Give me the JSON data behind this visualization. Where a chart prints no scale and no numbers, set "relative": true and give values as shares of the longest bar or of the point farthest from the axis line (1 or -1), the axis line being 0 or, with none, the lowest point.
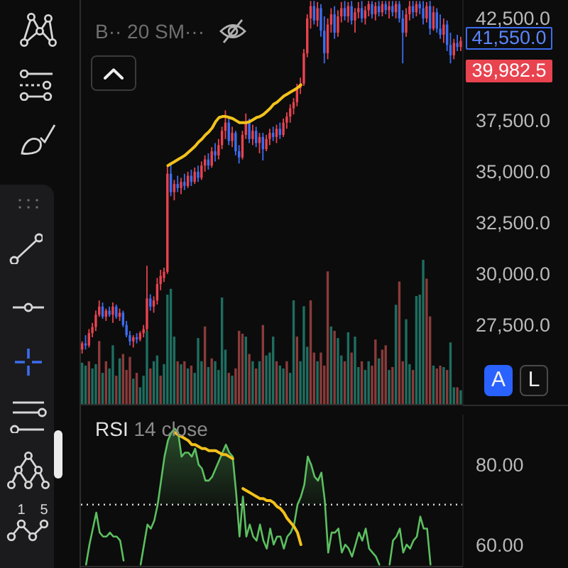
{
  "chart_data": [
    {
      "type": "candlestick",
      "categories": [
        null,
        null,
        null,
        null,
        null,
        null,
        null,
        null,
        null,
        null,
        null,
        null,
        null,
        null,
        null,
        null,
        null,
        null,
        null,
        null,
        null,
        null,
        null,
        null,
        null,
        null,
        null,
        null,
        null,
        null,
        null,
        null,
        null,
        null,
        null,
        null,
        null,
        null,
        null,
        null,
        null,
        null,
        null,
        null,
        null,
        null,
        null,
        null,
        null,
        null,
        null,
        null,
        null,
        null,
        null,
        null,
        null,
        null,
        null,
        null,
        null,
        null,
        null,
        null,
        null,
        null,
        null,
        null,
        null,
        null,
        null,
        null,
        null,
        null,
        null,
        null,
        null,
        null,
        null,
        null,
        null,
        null,
        null,
        null,
        null,
        null,
        null,
        null,
        null,
        null,
        null,
        null,
        null,
        null,
        null,
        null,
        null,
        null,
        null,
        null,
        null,
        null,
        null,
        null,
        null,
        null,
        null,
        null,
        null,
        null,
        null,
        null
      ],
      "ohlc": [
        [
          26300,
          26700,
          26100,
          26600
        ],
        [
          26600,
          27000,
          26300,
          26500
        ],
        [
          26500,
          27300,
          26400,
          27100
        ],
        [
          27100,
          27600,
          26900,
          27400
        ],
        [
          27400,
          28200,
          27200,
          28000
        ],
        [
          28000,
          28700,
          27900,
          28400
        ],
        [
          28400,
          28600,
          27800,
          27900
        ],
        [
          27900,
          28300,
          27700,
          28200
        ],
        [
          28200,
          28400,
          27900,
          28000
        ],
        [
          28000,
          28600,
          27600,
          28400
        ],
        [
          28400,
          28500,
          27800,
          27900
        ],
        [
          27900,
          28300,
          27700,
          28100
        ],
        [
          28100,
          28200,
          27400,
          27500
        ],
        [
          27500,
          27700,
          26900,
          27000
        ],
        [
          27000,
          27200,
          26500,
          26700
        ],
        [
          26700,
          27000,
          26400,
          26900
        ],
        [
          26900,
          27100,
          26600,
          26800
        ],
        [
          26800,
          27200,
          26700,
          27100
        ],
        [
          27100,
          27500,
          26900,
          27300
        ],
        [
          27300,
          30400,
          27200,
          28800
        ],
        [
          28800,
          29000,
          28200,
          28400
        ],
        [
          28400,
          28900,
          28100,
          28700
        ],
        [
          28700,
          29800,
          28500,
          29500
        ],
        [
          29500,
          30200,
          29200,
          29900
        ],
        [
          29800,
          30300,
          29600,
          30100
        ],
        [
          30100,
          35300,
          30000,
          34900
        ],
        [
          34900,
          35400,
          33800,
          34000
        ],
        [
          34000,
          34600,
          33600,
          34400
        ],
        [
          34400,
          34800,
          34000,
          34200
        ],
        [
          34200,
          34700,
          33900,
          34500
        ],
        [
          34500,
          34900,
          34100,
          34300
        ],
        [
          34300,
          35000,
          34200,
          34800
        ],
        [
          34800,
          35100,
          34300,
          34500
        ],
        [
          34500,
          35200,
          34400,
          35000
        ],
        [
          35000,
          35300,
          34500,
          34700
        ],
        [
          34700,
          35500,
          34600,
          35300
        ],
        [
          35300,
          35800,
          35000,
          35600
        ],
        [
          35600,
          35900,
          35100,
          35300
        ],
        [
          35300,
          36200,
          35200,
          36000
        ],
        [
          36000,
          36400,
          35500,
          35800
        ],
        [
          35800,
          36600,
          35600,
          36300
        ],
        [
          36300,
          37200,
          36100,
          37000
        ],
        [
          37000,
          38000,
          36600,
          37400
        ],
        [
          37400,
          37600,
          36300,
          36500
        ],
        [
          36500,
          37200,
          36200,
          36900
        ],
        [
          36900,
          37000,
          35800,
          36000
        ],
        [
          36000,
          36300,
          35400,
          35700
        ],
        [
          35700,
          37000,
          35600,
          36800
        ],
        [
          36800,
          37850,
          36600,
          37400
        ],
        [
          37400,
          37600,
          36400,
          36600
        ],
        [
          36600,
          37300,
          36300,
          37000
        ],
        [
          37000,
          37200,
          36200,
          36400
        ],
        [
          36400,
          36900,
          35900,
          36700
        ],
        [
          36700,
          36900,
          35550,
          36100
        ],
        [
          36100,
          36800,
          36000,
          36600
        ],
        [
          36600,
          37100,
          36300,
          36900
        ],
        [
          36900,
          37200,
          36500,
          36700
        ],
        [
          36700,
          37300,
          36400,
          37100
        ],
        [
          37100,
          37400,
          36600,
          36800
        ],
        [
          36800,
          37600,
          36700,
          37400
        ],
        [
          37400,
          37900,
          37100,
          37700
        ],
        [
          37700,
          38300,
          37400,
          38100
        ],
        [
          38100,
          38600,
          37800,
          38400
        ],
        [
          38400,
          39300,
          38200,
          39100
        ],
        [
          39100,
          39600,
          38800,
          39300
        ],
        [
          39300,
          41000,
          39200,
          40800
        ],
        [
          40800,
          42700,
          40600,
          42500
        ],
        [
          42500,
          43350,
          42000,
          43100
        ],
        [
          43100,
          43350,
          42200,
          42400
        ],
        [
          42400,
          43300,
          42100,
          43000
        ],
        [
          43000,
          43200,
          41600,
          41900
        ],
        [
          41900,
          42600,
          40300,
          40800
        ],
        [
          40800,
          42500,
          40500,
          42200
        ],
        [
          42200,
          43000,
          41800,
          42700
        ],
        [
          42700,
          43100,
          41500,
          41800
        ],
        [
          41800,
          42900,
          41600,
          42600
        ],
        [
          42600,
          43300,
          42300,
          43000
        ],
        [
          43000,
          43350,
          42400,
          42600
        ],
        [
          42600,
          43300,
          42300,
          43100
        ],
        [
          43100,
          43350,
          42200,
          42400
        ],
        [
          42400,
          43000,
          41800,
          42800
        ],
        [
          42800,
          43300,
          42500,
          43000
        ],
        [
          43000,
          43350,
          42300,
          42500
        ],
        [
          42500,
          43100,
          42200,
          42900
        ],
        [
          42900,
          43350,
          42600,
          43200
        ],
        [
          43200,
          43350,
          42500,
          42700
        ],
        [
          42700,
          43300,
          42400,
          43100
        ],
        [
          43100,
          43350,
          42600,
          42800
        ],
        [
          42800,
          43350,
          42600,
          43200
        ],
        [
          43200,
          43350,
          42700,
          42900
        ],
        [
          42900,
          43350,
          42500,
          43100
        ],
        [
          43100,
          43350,
          42600,
          42800
        ],
        [
          42800,
          43350,
          42500,
          43200
        ],
        [
          43200,
          43350,
          42300,
          42500
        ],
        [
          42500,
          42900,
          40300,
          41800
        ],
        [
          41800,
          43000,
          41600,
          42700
        ],
        [
          42700,
          43350,
          42400,
          43100
        ],
        [
          43100,
          43350,
          42500,
          42800
        ],
        [
          42800,
          43350,
          42600,
          43200
        ],
        [
          43200,
          43350,
          42700,
          43000
        ],
        [
          43000,
          43350,
          42200,
          42500
        ],
        [
          42500,
          43300,
          42300,
          43100
        ],
        [
          43100,
          43350,
          41700,
          42000
        ],
        [
          42000,
          43100,
          41900,
          42800
        ],
        [
          42800,
          43000,
          41800,
          42000
        ],
        [
          42000,
          42700,
          41500,
          41700
        ],
        [
          41700,
          42500,
          41300,
          42200
        ],
        [
          42200,
          42400,
          40900,
          41200
        ],
        [
          41200,
          41800,
          40300,
          40700
        ],
        [
          40700,
          41500,
          40500,
          41300
        ],
        [
          41300,
          41700,
          40900,
          41100
        ],
        [
          41100,
          41600,
          40900,
          41400
        ]
      ],
      "colors": [
        "#e8434f",
        "#3d6df0",
        "#e8434f",
        "#e8434f",
        "#e8434f",
        "#e8434f",
        "#3d6df0",
        "#e8434f",
        "#3d6df0",
        "#e8434f",
        "#3d6df0",
        "#e8434f",
        "#3d6df0",
        "#3d6df0",
        "#3d6df0",
        "#e8434f",
        "#3d6df0",
        "#e8434f",
        "#e8434f",
        "#e8434f",
        "#3d6df0",
        "#e8434f",
        "#e8434f",
        "#e8434f",
        "#e8434f",
        "#e8434f",
        "#3d6df0",
        "#e8434f",
        "#3d6df0",
        "#e8434f",
        "#3d6df0",
        "#e8434f",
        "#3d6df0",
        "#e8434f",
        "#3d6df0",
        "#e8434f",
        "#e8434f",
        "#3d6df0",
        "#e8434f",
        "#3d6df0",
        "#e8434f",
        "#e8434f",
        "#e8434f",
        "#3d6df0",
        "#e8434f",
        "#3d6df0",
        "#3d6df0",
        "#e8434f",
        "#e8434f",
        "#3d6df0",
        "#e8434f",
        "#3d6df0",
        "#e8434f",
        "#3d6df0",
        "#e8434f",
        "#e8434f",
        "#3d6df0",
        "#e8434f",
        "#3d6df0",
        "#e8434f",
        "#e8434f",
        "#e8434f",
        "#e8434f",
        "#e8434f",
        "#e8434f",
        "#e8434f",
        "#e8434f",
        "#e8434f",
        "#3d6df0",
        "#e8434f",
        "#3d6df0",
        "#3d6df0",
        "#e8434f",
        "#e8434f",
        "#3d6df0",
        "#e8434f",
        "#e8434f",
        "#3d6df0",
        "#e8434f",
        "#3d6df0",
        "#e8434f",
        "#e8434f",
        "#3d6df0",
        "#e8434f",
        "#e8434f",
        "#3d6df0",
        "#e8434f",
        "#3d6df0",
        "#e8434f",
        "#3d6df0",
        "#e8434f",
        "#3d6df0",
        "#e8434f",
        "#3d6df0",
        "#3d6df0",
        "#e8434f",
        "#e8434f",
        "#3d6df0",
        "#e8434f",
        "#3d6df0",
        "#3d6df0",
        "#e8434f",
        "#3d6df0",
        "#e8434f",
        "#3d6df0",
        "#3d6df0",
        "#e8434f",
        "#3d6df0",
        "#3d6df0",
        "#e8434f",
        "#3d6df0",
        "#e8434f"
      ],
      "series": [
        {
          "type": "line",
          "color": "#f2c21b",
          "values": [
            null,
            null,
            null,
            null,
            null,
            null,
            null,
            null,
            null,
            null,
            null,
            null,
            null,
            null,
            null,
            null,
            null,
            null,
            null,
            null,
            null,
            null,
            null,
            null,
            null,
            35300,
            35400,
            35500,
            35600,
            35700,
            35800,
            35950,
            36100,
            36250,
            36450,
            36600,
            36800,
            36950,
            37150,
            37450,
            37650,
            37700,
            37700,
            37650,
            37600,
            37500,
            37400,
            37400,
            37400,
            37450,
            37550,
            37650,
            37700,
            37800,
            37950,
            38100,
            38300,
            38400,
            38550,
            38700,
            38800,
            38900,
            39000,
            39100,
            39250,
            null,
            null,
            null,
            null,
            null,
            null,
            null,
            null,
            null,
            null,
            null,
            null,
            null,
            null,
            null,
            null,
            null,
            null,
            null,
            null,
            null,
            null,
            null,
            null,
            null,
            null,
            null,
            null,
            null,
            null,
            null,
            null,
            null,
            null,
            null,
            null,
            null,
            null,
            null,
            null,
            null,
            null,
            null,
            null,
            null,
            null,
            null
          ]
        }
      ],
      "ylim": [
        23600,
        43400
      ],
      "yticks": [
        {
          "value": 27500,
          "label": "27,500.0"
        },
        {
          "value": 30000,
          "label": "30,000.0"
        },
        {
          "value": 32500,
          "label": "32,500.0"
        },
        {
          "value": 35000,
          "label": "35,000.0"
        },
        {
          "value": 37500,
          "label": "37,500.0"
        },
        {
          "value": 42500,
          "label": "42,500.0"
        }
      ],
      "annotations": [
        "B·· 20 SM···",
        "41,550.0",
        "39,982.5",
        "A",
        "L"
      ]
    },
    {
      "type": "bar",
      "relative": true,
      "categories": [
        null,
        null,
        null,
        null,
        null,
        null,
        null,
        null,
        null,
        null,
        null,
        null,
        null,
        null,
        null,
        null,
        null,
        null,
        null,
        null,
        null,
        null,
        null,
        null,
        null,
        null,
        null,
        null,
        null,
        null,
        null,
        null,
        null,
        null,
        null,
        null,
        null,
        null,
        null,
        null,
        null,
        null,
        null,
        null,
        null,
        null,
        null,
        null,
        null,
        null,
        null,
        null,
        null,
        null,
        null,
        null,
        null,
        null,
        null,
        null,
        null,
        null,
        null,
        null,
        null,
        null,
        null,
        null,
        null,
        null,
        null,
        null,
        null,
        null,
        null,
        null,
        null,
        null,
        null,
        null,
        null,
        null,
        null,
        null,
        null,
        null,
        null,
        null,
        null,
        null,
        null,
        null,
        null,
        null,
        null,
        null,
        null,
        null,
        null,
        null,
        null,
        null,
        null,
        null,
        null,
        null,
        null,
        null,
        null,
        null,
        null,
        null
      ],
      "values": [
        0.29,
        0.27,
        0.3,
        0.25,
        0.28,
        0.44,
        0.22,
        0.3,
        0.25,
        0.41,
        0.2,
        0.32,
        0.35,
        0.24,
        0.33,
        0.18,
        0.22,
        0.12,
        0.2,
        0.51,
        0.25,
        0.3,
        0.34,
        0.2,
        0.28,
        0.76,
        0.8,
        0.47,
        0.3,
        0.28,
        0.3,
        0.25,
        0.27,
        0.22,
        0.46,
        0.3,
        0.54,
        0.26,
        0.32,
        0.3,
        0.24,
        0.74,
        0.38,
        0.22,
        0.2,
        0.25,
        0.51,
        0.49,
        0.47,
        0.35,
        0.3,
        0.25,
        0.3,
        0.55,
        0.34,
        0.36,
        0.47,
        0.3,
        0.27,
        0.25,
        0.3,
        0.22,
        0.72,
        0.47,
        0.3,
        0.68,
        0.4,
        0.72,
        0.36,
        0.3,
        0.36,
        0.27,
        0.92,
        0.54,
        0.51,
        0.46,
        0.34,
        0.3,
        0.5,
        0.36,
        0.47,
        0.26,
        0.3,
        0.24,
        0.3,
        0.27,
        0.45,
        0.32,
        0.38,
        0.41,
        0.24,
        0.26,
        0.69,
        0.85,
        0.3,
        0.59,
        0.28,
        0.24,
        0.75,
        0.76,
        1,
        0.87,
        0.61,
        0.27,
        0.25,
        0.27,
        0.26,
        0.24,
        0.43,
        0.12,
        0.12,
        0.1
      ],
      "colors": [
        "#1e6e60",
        "#1e6e60",
        "#8a3b3b",
        "#1e6e60",
        "#1e6e60",
        "#8a3b3b",
        "#1e6e60",
        "#8a3b3b",
        "#1e6e60",
        "#1e6e60",
        "#8a3b3b",
        "#1e6e60",
        "#8a3b3b",
        "#8a3b3b",
        "#8a3b3b",
        "#1e6e60",
        "#8a3b3b",
        "#1e6e60",
        "#1e6e60",
        "#1e6e60",
        "#8a3b3b",
        "#1e6e60",
        "#1e6e60",
        "#8a3b3b",
        "#1e6e60",
        "#1e6e60",
        "#1e6e60",
        "#1e6e60",
        "#8a3b3b",
        "#1e6e60",
        "#8a3b3b",
        "#1e6e60",
        "#8a3b3b",
        "#1e6e60",
        "#1e6e60",
        "#1e6e60",
        "#8a3b3b",
        "#1e6e60",
        "#8a3b3b",
        "#1e6e60",
        "#1e6e60",
        "#1e6e60",
        "#1e6e60",
        "#8a3b3b",
        "#1e6e60",
        "#8a3b3b",
        "#8a3b3b",
        "#8a3b3b",
        "#1e6e60",
        "#8a3b3b",
        "#1e6e60",
        "#8a3b3b",
        "#1e6e60",
        "#8a3b3b",
        "#1e6e60",
        "#1e6e60",
        "#1e6e60",
        "#8a3b3b",
        "#1e6e60",
        "#1e6e60",
        "#8a3b3b",
        "#1e6e60",
        "#1e6e60",
        "#8a3b3b",
        "#1e6e60",
        "#1e6e60",
        "#1e6e60",
        "#8a3b3b",
        "#8a3b3b",
        "#1e6e60",
        "#8a3b3b",
        "#8a3b3b",
        "#8a3b3b",
        "#1e6e60",
        "#8a3b3b",
        "#1e6e60",
        "#1e6e60",
        "#8a3b3b",
        "#1e6e60",
        "#8a3b3b",
        "#1e6e60",
        "#1e6e60",
        "#8a3b3b",
        "#1e6e60",
        "#1e6e60",
        "#8a3b3b",
        "#8a3b3b",
        "#1e6e60",
        "#8a3b3b",
        "#8a3b3b",
        "#1e6e60",
        "#8a3b3b",
        "#1e6e60",
        "#8a3b3b",
        "#8a3b3b",
        "#1e6e60",
        "#1e6e60",
        "#8a3b3b",
        "#1e6e60",
        "#1e6e60",
        "#1e6e60",
        "#8a3b3b",
        "#8a3b3b",
        "#1e6e60",
        "#8a3b3b",
        "#8a3b3b",
        "#1e6e60",
        "#8a3b3b",
        "#1e6e60",
        "#1e6e60",
        "#8a3b3b",
        "#1e6e60"
      ]
    },
    {
      "type": "line",
      "title": "RSI",
      "subtitle": "14 close",
      "categories": [
        null,
        null,
        null,
        null,
        null,
        null,
        null,
        null,
        null,
        null,
        null,
        null,
        null,
        null,
        null,
        null,
        null,
        null,
        null,
        null,
        null,
        null,
        null,
        null,
        null,
        null,
        null,
        null,
        null,
        null,
        null,
        null,
        null,
        null,
        null,
        null,
        null,
        null,
        null,
        null,
        null,
        null,
        null,
        null,
        null,
        null,
        null,
        null,
        null,
        null,
        null,
        null,
        null,
        null,
        null,
        null,
        null,
        null,
        null,
        null,
        null,
        null,
        null,
        null,
        null,
        null,
        null,
        null,
        null,
        null,
        null,
        null,
        null,
        null,
        null,
        null,
        null,
        null,
        null,
        null,
        null,
        null,
        null,
        null,
        null,
        null,
        null,
        null,
        null,
        null,
        null,
        null,
        null,
        null,
        null,
        null,
        null,
        null,
        null,
        null,
        null,
        null,
        null,
        null,
        null,
        null,
        null,
        null,
        null,
        null,
        null,
        null
      ],
      "series": [
        {
          "color": "#5cbf60",
          "values": [
            null,
            55,
            60,
            64,
            68,
            63,
            62,
            62,
            63,
            62,
            62,
            61,
            56,
            null,
            null,
            null,
            null,
            55,
            60,
            65,
            64,
            66,
            70,
            76,
            82,
            86,
            88,
            89,
            88,
            82,
            83,
            83,
            82,
            84,
            80,
            79,
            76,
            76,
            77,
            79,
            81,
            83,
            85,
            83,
            82,
            73,
            62,
            72,
            62,
            65,
            62,
            61,
            65,
            61,
            59,
            64,
            60,
            62,
            62,
            59,
            62,
            63,
            65,
            70,
            72,
            75,
            82,
            80,
            77,
            76,
            78,
            71,
            58,
            63,
            63,
            64,
            58,
            60,
            59,
            57,
            60,
            63,
            61,
            64,
            59,
            58,
            57,
            55,
            null,
            null,
            55,
            61,
            62,
            64,
            58,
            60,
            59,
            61,
            62,
            67,
            64,
            64,
            55,
            null,
            null,
            null,
            null,
            null,
            null,
            null,
            null,
            null
          ]
        },
        {
          "color": "#f2c21b",
          "values": [
            null,
            null,
            null,
            null,
            null,
            null,
            null,
            null,
            null,
            null,
            null,
            null,
            null,
            null,
            null,
            null,
            null,
            null,
            null,
            null,
            null,
            null,
            null,
            null,
            null,
            null,
            null,
            88,
            87.5,
            87,
            86.5,
            86,
            85,
            85,
            84.5,
            84,
            84,
            83.5,
            83.5,
            83.5,
            83,
            82.5,
            82.5,
            82,
            81.5,
            null,
            null,
            null,
            null,
            null,
            null,
            null,
            null,
            null,
            null,
            null,
            null,
            null,
            null,
            null,
            null,
            null,
            null,
            null,
            null,
            null,
            null,
            null,
            null,
            null,
            null,
            null,
            null,
            null,
            null,
            null,
            null,
            null,
            null,
            null,
            null,
            null,
            null,
            null,
            null,
            null,
            null,
            null,
            null,
            null,
            null,
            null,
            null,
            null,
            null,
            null,
            null,
            null,
            null,
            null,
            null,
            null,
            null,
            null,
            null,
            null,
            null,
            null,
            null,
            null,
            null,
            null
          ]
        },
        {
          "color": "#f2c21b",
          "values": [
            null,
            null,
            null,
            null,
            null,
            null,
            null,
            null,
            null,
            null,
            null,
            null,
            null,
            null,
            null,
            null,
            null,
            null,
            null,
            null,
            null,
            null,
            null,
            null,
            null,
            null,
            null,
            null,
            null,
            null,
            null,
            null,
            null,
            null,
            null,
            null,
            null,
            null,
            null,
            null,
            null,
            null,
            null,
            null,
            null,
            null,
            null,
            74,
            73.5,
            73,
            72.5,
            72,
            71.5,
            71.5,
            71,
            71,
            70.5,
            69.5,
            69,
            68,
            66.5,
            65.5,
            64.5,
            63,
            60,
            null,
            null,
            null,
            null,
            null,
            null,
            null,
            null,
            null,
            null,
            null,
            null,
            null,
            null,
            null,
            null,
            null,
            null,
            null,
            null,
            null,
            null,
            null,
            null,
            null,
            null,
            null,
            null,
            null,
            null,
            null,
            null,
            null,
            null,
            null,
            null,
            null,
            null,
            null,
            null,
            null,
            null,
            null,
            null,
            null,
            null,
            null
          ]
        }
      ],
      "ylim": [
        54.5,
        92.5
      ],
      "yticks": [
        {
          "value": 80,
          "label": "80.00"
        },
        {
          "value": 60,
          "label": "60.00"
        }
      ],
      "ref_lines": [
        {
          "axis": "y",
          "value": 70,
          "color": "#d9d9d9",
          "line_style": "dotted"
        }
      ],
      "annotations": [
        "1",
        "5"
      ]
    }
  ]
}
